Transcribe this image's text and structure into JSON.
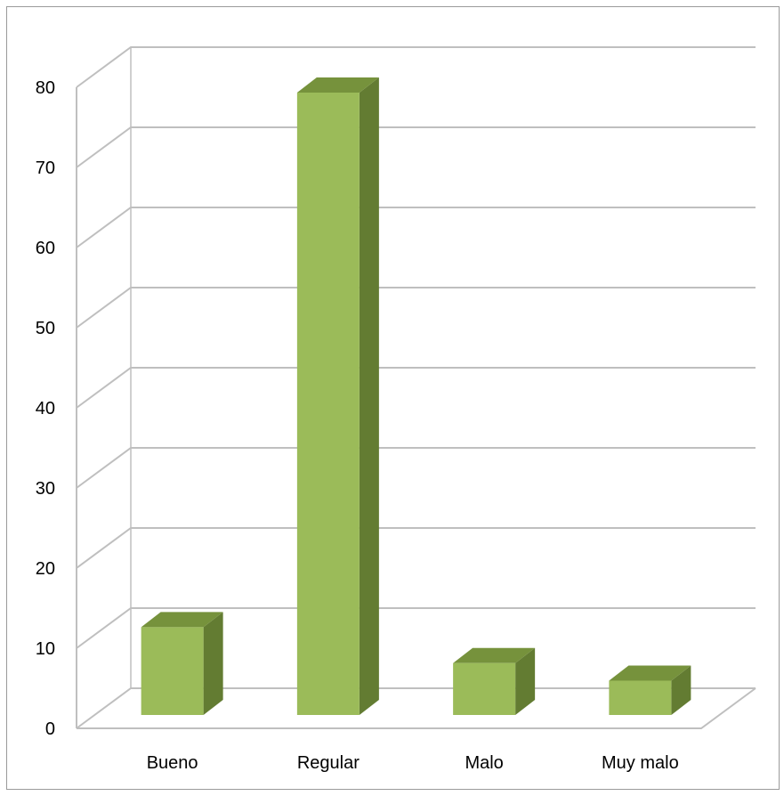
{
  "chart_data": {
    "type": "bar",
    "categories": [
      "Bueno",
      "Regular",
      "Malo",
      "Muy malo"
    ],
    "values": [
      11,
      78,
      6.5,
      4.3
    ],
    "ylim": [
      0,
      80
    ],
    "yticks": [
      "0",
      "10",
      "20",
      "30",
      "40",
      "50",
      "60",
      "70",
      "80"
    ],
    "grid": true,
    "style": "3d-column",
    "colors": {
      "front": "#9bbb59",
      "top": "#76923c",
      "side": "#637c32",
      "grid": "#bfbfbf"
    }
  }
}
